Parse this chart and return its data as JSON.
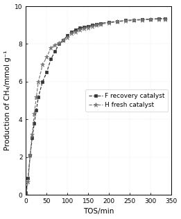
{
  "title": "",
  "xlabel": "TOS/min",
  "ylabel": "Production of CH₄/mmol g⁻¹",
  "xlim": [
    0,
    350
  ],
  "ylim": [
    0,
    10
  ],
  "xticks": [
    0,
    50,
    100,
    150,
    200,
    250,
    300,
    350
  ],
  "yticks": [
    0,
    2,
    4,
    6,
    8,
    10
  ],
  "legend_labels": [
    "F recovery catalyst",
    "H fresh catalyst"
  ],
  "line1_color": "#333333",
  "line2_color": "#777777",
  "line1_marker": "s",
  "line2_marker": "*",
  "line1_x": [
    0,
    5,
    10,
    15,
    20,
    25,
    30,
    40,
    50,
    60,
    70,
    80,
    90,
    100,
    110,
    120,
    130,
    140,
    150,
    160,
    170,
    180,
    200,
    220,
    240,
    260,
    280,
    300,
    320,
    335
  ],
  "line1_y": [
    0.1,
    0.9,
    2.1,
    3.0,
    3.8,
    4.5,
    5.2,
    6.0,
    6.5,
    7.2,
    7.6,
    8.0,
    8.2,
    8.45,
    8.65,
    8.75,
    8.85,
    8.9,
    8.95,
    9.0,
    9.05,
    9.1,
    9.15,
    9.2,
    9.25,
    9.28,
    9.3,
    9.32,
    9.35,
    9.35
  ],
  "line2_x": [
    0,
    5,
    10,
    15,
    20,
    25,
    30,
    40,
    50,
    60,
    70,
    80,
    90,
    100,
    110,
    120,
    130,
    140,
    150,
    160,
    170,
    180,
    200,
    220,
    240,
    260,
    280,
    300,
    320,
    335
  ],
  "line2_y": [
    0.0,
    0.7,
    2.1,
    3.2,
    4.3,
    5.2,
    6.0,
    6.9,
    7.3,
    7.8,
    7.95,
    8.05,
    8.2,
    8.35,
    8.55,
    8.65,
    8.75,
    8.82,
    8.88,
    8.95,
    9.0,
    9.05,
    9.12,
    9.18,
    9.22,
    9.25,
    9.28,
    9.3,
    9.32,
    9.32
  ],
  "figsize": [
    2.61,
    3.16
  ],
  "dpi": 100,
  "fontsize_label": 7.5,
  "fontsize_tick": 6.5,
  "fontsize_legend": 6.5
}
